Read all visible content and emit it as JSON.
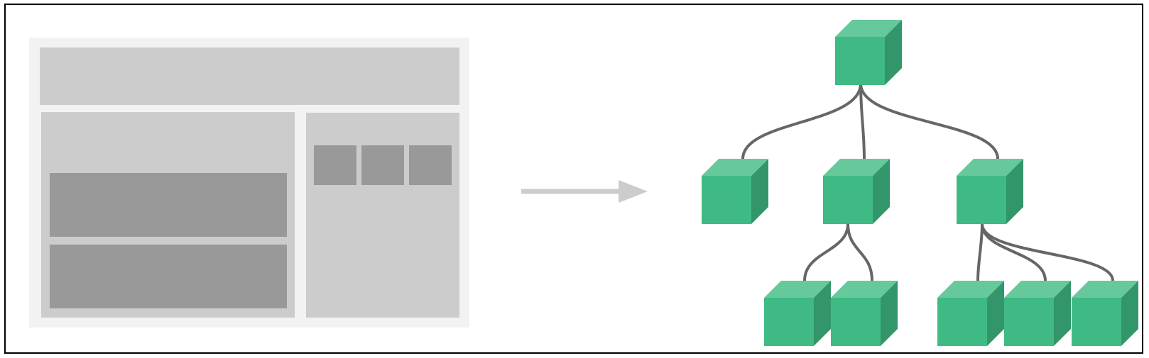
{
  "colors": {
    "frame_border": "#000000",
    "wireframe_outer": "#f2f2f2",
    "wireframe_panel": "#cccccc",
    "wireframe_block": "#999999",
    "arrow": "#cccccc",
    "connector": "#666666",
    "cube_front": "#3fba84",
    "cube_top": "#66c99c",
    "cube_side": "#33966a"
  },
  "wireframe": {
    "header": true,
    "main_blocks": 2,
    "sidebar_tiles": 3
  },
  "component_tree": {
    "id": "root",
    "children": [
      {
        "id": "left",
        "children": []
      },
      {
        "id": "middle",
        "children": [
          {
            "id": "middle-a"
          },
          {
            "id": "middle-b"
          }
        ]
      },
      {
        "id": "right",
        "children": [
          {
            "id": "right-a"
          },
          {
            "id": "right-b"
          },
          {
            "id": "right-c"
          }
        ]
      }
    ]
  }
}
